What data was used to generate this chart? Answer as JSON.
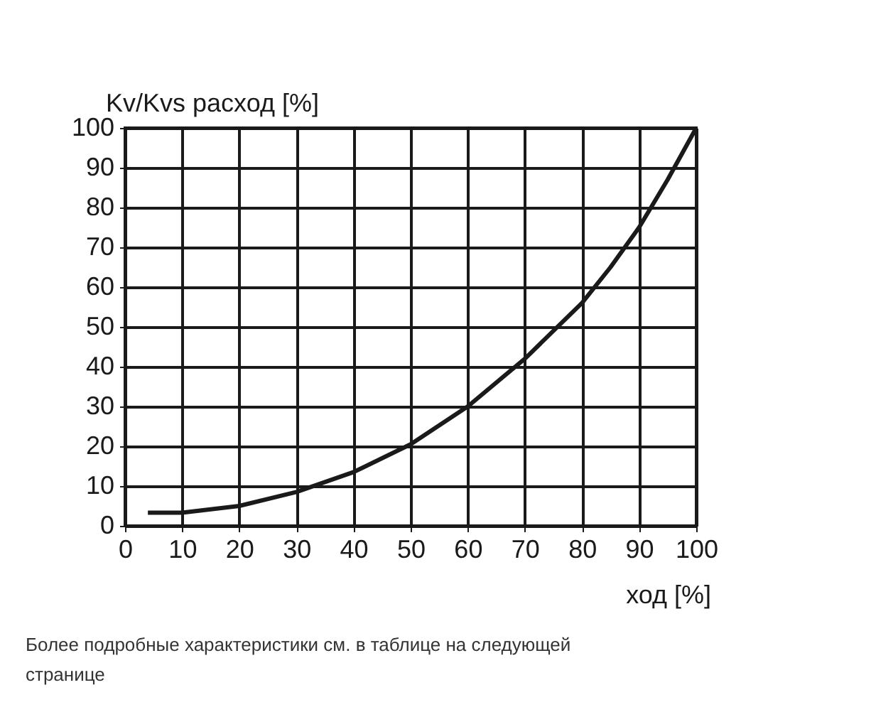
{
  "chart_data": {
    "type": "line",
    "x": [
      4,
      10,
      20,
      30,
      40,
      50,
      60,
      70,
      80,
      85,
      90,
      95,
      100
    ],
    "series": [
      {
        "color": "#1a1a1a",
        "values": [
          3.3,
          3.3,
          5,
          8.5,
          13.5,
          20.5,
          30,
          42,
          56,
          65,
          75,
          87,
          100
        ]
      }
    ],
    "xlim": [
      0,
      100
    ],
    "ylim": [
      0,
      100
    ],
    "xticks": [
      0,
      10,
      20,
      30,
      40,
      50,
      60,
      70,
      80,
      90,
      100
    ],
    "yticks": [
      0,
      10,
      20,
      30,
      40,
      50,
      60,
      70,
      80,
      90,
      100
    ],
    "xlabel": "ход [%]",
    "ylabel": "Kv/Kvs расход [%]",
    "grid": true,
    "marker": "none",
    "line_style": "solid",
    "annotations": [
      "Более подробные характеристики см. в таблице на следующей странице"
    ]
  }
}
